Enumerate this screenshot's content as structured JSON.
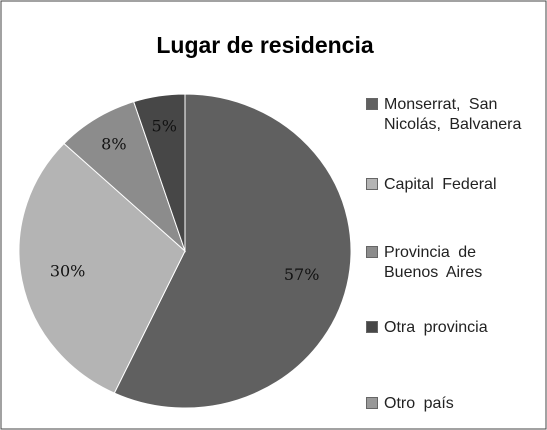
{
  "chart_data": {
    "type": "pie",
    "title": "Lugar de residencia",
    "categories": [
      "Monserrat, San\nNicolás, Balvanera",
      "Capital Federal",
      "Provincia de\nBuenos Aires",
      "Otra provincia",
      "Otro país"
    ],
    "values": [
      57,
      30,
      8,
      5,
      0
    ],
    "value_labels": [
      "57%",
      "30%",
      "8%",
      "5%",
      null
    ],
    "colors": [
      "#606060",
      "#b4b4b4",
      "#8c8c8c",
      "#474747",
      "#999999"
    ],
    "legend": "right"
  }
}
